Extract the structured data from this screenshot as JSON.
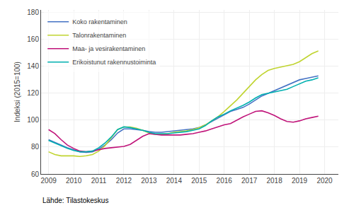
{
  "chart_data": {
    "type": "line",
    "ylabel": "Indeksi (2015=100)",
    "annotations": [
      "Lähde: Tilastokeskus"
    ],
    "x": [
      2009,
      2009.25,
      2009.5,
      2009.75,
      2010,
      2010.25,
      2010.5,
      2010.75,
      2011,
      2011.25,
      2011.5,
      2011.75,
      2012,
      2012.25,
      2012.5,
      2012.75,
      2013,
      2013.25,
      2013.5,
      2013.75,
      2014,
      2014.25,
      2014.5,
      2014.75,
      2015,
      2015.25,
      2015.5,
      2015.75,
      2016,
      2016.25,
      2016.5,
      2016.75,
      2017,
      2017.25,
      2017.5,
      2017.75,
      2018,
      2018.25,
      2018.5,
      2018.75,
      2019,
      2019.25,
      2019.5,
      2019.75
    ],
    "xlim": [
      2008.7,
      2020.55
    ],
    "xticks": [
      2009,
      2010,
      2011,
      2012,
      2013,
      2014,
      2015,
      2016,
      2017,
      2018,
      2019,
      2020
    ],
    "ylim": [
      60,
      182
    ],
    "yticks": [
      60,
      80,
      100,
      120,
      140,
      160,
      180
    ],
    "grid": true,
    "legend": "upper left",
    "series": [
      {
        "name": "Koko rakentaminen",
        "color": "#4472c4",
        "values": [
          85.5,
          83.5,
          81.5,
          79.5,
          78.0,
          76.5,
          76.0,
          76.5,
          78.5,
          81.5,
          85.5,
          90.5,
          93.5,
          93.5,
          93.0,
          92.5,
          91.5,
          91.0,
          91.0,
          91.5,
          92.0,
          92.5,
          93.0,
          93.5,
          94.5,
          96.5,
          99.0,
          101.5,
          104.0,
          106.5,
          108.0,
          109.5,
          112.0,
          115.0,
          118.0,
          120.0,
          122.0,
          124.0,
          126.0,
          128.0,
          130.0,
          131.0,
          132.0,
          133.0
        ]
      },
      {
        "name": "Talonrakentaminen",
        "color": "#c0d430",
        "values": [
          76.5,
          74.5,
          73.5,
          73.5,
          73.5,
          73.0,
          73.5,
          74.5,
          77.0,
          81.0,
          87.0,
          93.0,
          95.0,
          95.0,
          94.0,
          92.5,
          90.5,
          89.5,
          89.5,
          90.0,
          91.0,
          91.5,
          92.0,
          93.0,
          94.5,
          96.5,
          99.5,
          102.5,
          106.5,
          110.5,
          115.0,
          120.0,
          125.0,
          130.0,
          134.0,
          137.0,
          138.5,
          139.5,
          140.5,
          141.5,
          143.5,
          146.5,
          149.5,
          151.5
        ]
      },
      {
        "name": "Maa- ja vesirakentaminen",
        "color": "#c0147a",
        "values": [
          93.0,
          90.0,
          85.5,
          81.5,
          79.0,
          77.0,
          76.5,
          77.0,
          78.0,
          79.0,
          79.5,
          80.0,
          80.5,
          82.0,
          85.0,
          88.0,
          90.0,
          89.5,
          89.0,
          89.0,
          89.0,
          89.0,
          89.5,
          90.0,
          91.0,
          92.0,
          93.5,
          95.0,
          96.5,
          97.5,
          100.0,
          102.5,
          104.5,
          106.5,
          107.0,
          105.5,
          103.5,
          101.0,
          99.0,
          98.5,
          99.5,
          101.0,
          102.0,
          103.0
        ]
      },
      {
        "name": "Erikoistunut rakennustoiminta",
        "color": "#00b0b0",
        "values": [
          85.0,
          83.0,
          81.0,
          79.0,
          77.5,
          76.5,
          76.5,
          77.0,
          79.5,
          83.0,
          87.5,
          93.0,
          95.0,
          94.5,
          93.5,
          92.5,
          91.0,
          90.0,
          90.0,
          90.0,
          90.5,
          91.0,
          91.5,
          92.5,
          93.5,
          96.0,
          99.5,
          102.5,
          104.5,
          107.0,
          109.0,
          111.0,
          113.5,
          116.5,
          119.0,
          120.0,
          121.0,
          122.0,
          123.0,
          125.0,
          127.0,
          129.0,
          130.0,
          131.5
        ]
      }
    ]
  }
}
